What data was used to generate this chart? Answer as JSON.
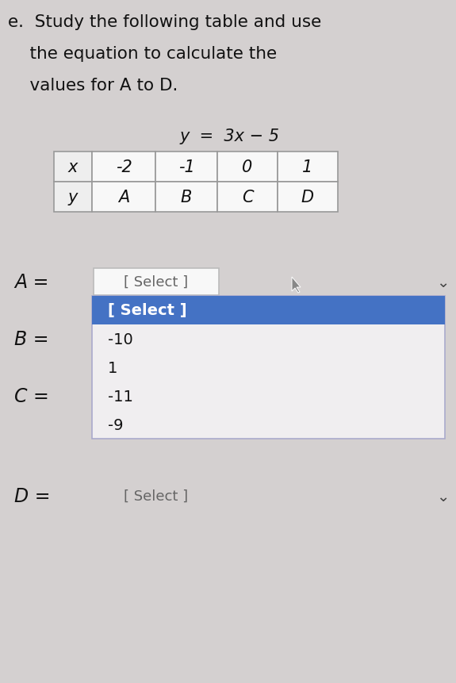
{
  "title_line1": "e.  Study the following table and use",
  "title_line2": "    the equation to calculate the",
  "title_line3": "    values for A to D.",
  "equation": "y  =  3x − 5",
  "table_x_header": "x",
  "table_y_header": "y",
  "table_x_values": [
    "-2",
    "-1",
    "0",
    "1"
  ],
  "table_y_values": [
    "A",
    "B",
    "C",
    "D"
  ],
  "A_label": "A =",
  "A_value": "[ Select ]",
  "dropdown_highlighted": "[ Select ]",
  "dropdown_items": [
    "-10",
    "1",
    "-11",
    "-9"
  ],
  "B_label": "B =",
  "C_label": "C =",
  "D_label": "D =",
  "D_value": "[ Select ]",
  "bg_color": "#d4d0d0",
  "table_bg": "#f8f8f8",
  "dropdown_bg": "#f0eef0",
  "dropdown_border": "#aaaacc",
  "dropdown_highlight_color": "#4472c4",
  "dropdown_highlight_text": "#ffffff",
  "font_color": "#111111",
  "select_box_border": "#bbbbbb",
  "select_box_bg": "#f8f8f8",
  "chevron_color": "#444444",
  "cursor_color": "#555555",
  "fig_w": 5.75,
  "fig_h": 8.62,
  "dpi": 100
}
